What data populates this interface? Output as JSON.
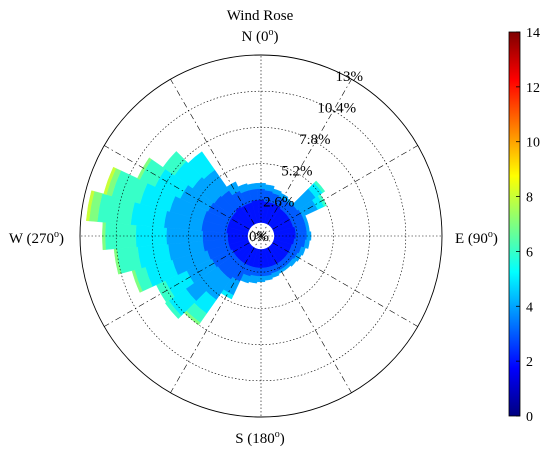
{
  "chart_data": {
    "type": "wind-rose",
    "title": "Wind Rose",
    "directions": {
      "north": {
        "text": "N (0",
        "sup": "o",
        "close": ")"
      },
      "east": {
        "text": "E (90",
        "sup": "o",
        "close": ")"
      },
      "south": {
        "text": "S (180",
        "sup": "o",
        "close": ")"
      },
      "west": {
        "text": "W (270",
        "sup": "o",
        "close": ")"
      }
    },
    "radial_ticks": [
      "0%",
      "2.6%",
      "5.2%",
      "7.8%",
      "10.4%",
      "13%"
    ],
    "radial_max_percent": 13,
    "sector_width_deg": 10,
    "colorbar": {
      "min": 0,
      "max": 14,
      "ticks": [
        "0",
        "2",
        "4",
        "6",
        "8",
        "10",
        "12",
        "14"
      ],
      "colormap": "jet"
    },
    "speed_bins": [
      0,
      2,
      3,
      4,
      5,
      6,
      7,
      8,
      9,
      10,
      11,
      12
    ],
    "sectors": [
      {
        "direction": 0,
        "cumulative_percent": [
          0.3,
          2.6,
          3.4,
          3.8
        ]
      },
      {
        "direction": 10,
        "cumulative_percent": [
          0.3,
          2.5,
          3.3,
          3.7
        ]
      },
      {
        "direction": 20,
        "cumulative_percent": [
          0.3,
          2.5,
          3.2,
          3.5
        ]
      },
      {
        "direction": 30,
        "cumulative_percent": [
          0.3,
          2.5,
          3.1,
          3.4
        ]
      },
      {
        "direction": 40,
        "cumulative_percent": [
          0.3,
          2.4,
          3.1,
          3.3
        ]
      },
      {
        "direction": 50,
        "cumulative_percent": [
          0.3,
          2.4,
          3.2,
          4.8,
          5.4,
          5.6
        ]
      },
      {
        "direction": 60,
        "cumulative_percent": [
          0.3,
          2.4,
          3.3,
          4.5,
          5.0,
          5.2
        ]
      },
      {
        "direction": 70,
        "cumulative_percent": [
          0.3,
          2.4,
          3.3,
          3.5
        ]
      },
      {
        "direction": 80,
        "cumulative_percent": [
          0.3,
          2.5,
          3.3,
          3.5
        ]
      },
      {
        "direction": 90,
        "cumulative_percent": [
          0.3,
          2.5,
          3.3,
          3.6
        ]
      },
      {
        "direction": 100,
        "cumulative_percent": [
          0.3,
          2.4,
          3.2,
          3.5
        ]
      },
      {
        "direction": 110,
        "cumulative_percent": [
          0.3,
          2.3,
          3.0,
          3.3
        ]
      },
      {
        "direction": 120,
        "cumulative_percent": [
          0.3,
          2.3,
          2.9,
          3.2
        ]
      },
      {
        "direction": 130,
        "cumulative_percent": [
          0.3,
          2.3,
          2.8,
          3.1
        ]
      },
      {
        "direction": 140,
        "cumulative_percent": [
          0.3,
          2.3,
          2.8,
          3.0
        ]
      },
      {
        "direction": 150,
        "cumulative_percent": [
          0.3,
          2.3,
          2.8,
          3.0
        ]
      },
      {
        "direction": 160,
        "cumulative_percent": [
          0.3,
          2.3,
          2.8,
          3.1
        ]
      },
      {
        "direction": 170,
        "cumulative_percent": [
          0.3,
          2.3,
          2.9,
          3.2
        ]
      },
      {
        "direction": 180,
        "cumulative_percent": [
          0.3,
          2.3,
          2.9,
          3.3
        ]
      },
      {
        "direction": 190,
        "cumulative_percent": [
          0.3,
          2.3,
          2.9,
          3.4
        ]
      },
      {
        "direction": 200,
        "cumulative_percent": [
          0.3,
          2.3,
          3.0,
          3.5
        ]
      },
      {
        "direction": 210,
        "cumulative_percent": [
          0.3,
          2.3,
          3.6,
          4.7,
          5.0
        ]
      },
      {
        "direction": 220,
        "cumulative_percent": [
          0.3,
          2.3,
          3.8,
          5.6,
          6.8,
          7.6,
          7.8
        ]
      },
      {
        "direction": 230,
        "cumulative_percent": [
          0.3,
          2.3,
          3.8,
          6.6,
          8.1,
          8.4
        ]
      },
      {
        "direction": 240,
        "cumulative_percent": [
          0.3,
          2.3,
          3.9,
          5.9,
          7.6,
          8.3
        ]
      },
      {
        "direction": 250,
        "cumulative_percent": [
          0.3,
          2.4,
          4.0,
          6.6,
          8.6,
          9.4,
          9.6
        ]
      },
      {
        "direction": 260,
        "cumulative_percent": [
          0.3,
          2.4,
          4.2,
          6.7,
          8.9,
          10.4,
          10.6
        ]
      },
      {
        "direction": 270,
        "cumulative_percent": [
          0.3,
          2.4,
          4.2,
          6.8,
          9.0,
          11.2,
          11.4
        ]
      },
      {
        "direction": 280,
        "cumulative_percent": [
          0.3,
          2.5,
          4.3,
          7.0,
          9.4,
          11.8,
          12.4,
          12.6
        ]
      },
      {
        "direction": 290,
        "cumulative_percent": [
          0.3,
          2.5,
          4.3,
          6.8,
          9.0,
          11.1,
          11.5,
          11.7
        ]
      },
      {
        "direction": 300,
        "cumulative_percent": [
          0.3,
          2.5,
          4.2,
          6.4,
          8.4,
          9.6,
          9.8
        ]
      },
      {
        "direction": 310,
        "cumulative_percent": [
          0.3,
          2.5,
          4.1,
          6.0,
          7.6,
          8.6
        ]
      },
      {
        "direction": 320,
        "cumulative_percent": [
          0.3,
          2.6,
          4.0,
          5.8,
          7.4
        ]
      },
      {
        "direction": 330,
        "cumulative_percent": [
          0.3,
          2.5,
          3.6,
          4.3
        ]
      },
      {
        "direction": 340,
        "cumulative_percent": [
          0.3,
          2.5,
          3.4,
          3.9
        ]
      },
      {
        "direction": 350,
        "cumulative_percent": [
          0.3,
          2.6,
          3.4,
          3.8
        ]
      }
    ]
  }
}
